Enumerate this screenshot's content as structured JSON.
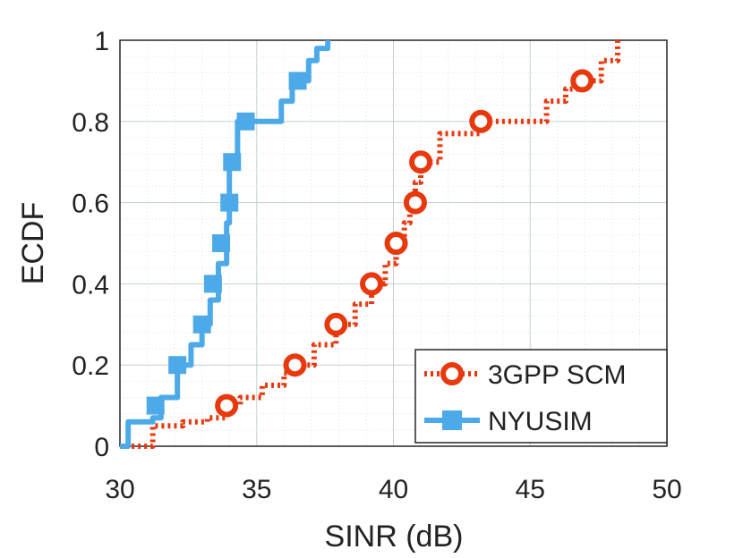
{
  "chart_data": {
    "type": "line",
    "title": "",
    "xlabel": "SINR (dB)",
    "ylabel": "ECDF",
    "xlim": [
      30,
      50
    ],
    "ylim": [
      0,
      1
    ],
    "xticks": [
      "30",
      "35",
      "40",
      "45",
      "50"
    ],
    "yticks": [
      "0",
      "0.2",
      "0.4",
      "0.6",
      "0.8",
      "1"
    ],
    "grid": true,
    "legend_position": "bottom-right",
    "series": [
      {
        "name": "3GPP SCM",
        "color": "#e8380d",
        "line_style": "dotted",
        "marker": "circle",
        "x": [
          30.2,
          31.2,
          32.3,
          33.2,
          33.9,
          34.4,
          35.2,
          36.0,
          36.4,
          37.1,
          37.9,
          38.6,
          39.2,
          39.7,
          40.1,
          40.4,
          40.6,
          40.8,
          41.0,
          41.7,
          42.5,
          43.2,
          44.0,
          45.0,
          45.6,
          46.3,
          46.9,
          47.6,
          48.2
        ],
        "y": [
          0.0,
          0.05,
          0.06,
          0.07,
          0.1,
          0.12,
          0.15,
          0.18,
          0.2,
          0.25,
          0.3,
          0.35,
          0.4,
          0.45,
          0.5,
          0.55,
          0.6,
          0.65,
          0.7,
          0.77,
          0.77,
          0.8,
          0.8,
          0.8,
          0.85,
          0.88,
          0.9,
          0.95,
          1.0
        ],
        "marker_x": [
          33.9,
          36.4,
          37.9,
          39.2,
          40.1,
          40.8,
          41.0,
          43.2,
          46.9
        ],
        "marker_y": [
          0.1,
          0.2,
          0.3,
          0.4,
          0.5,
          0.6,
          0.7,
          0.8,
          0.9
        ]
      },
      {
        "name": "NYUSIM",
        "color": "#4daae8",
        "line_style": "solid",
        "marker": "square",
        "x": [
          30.0,
          30.3,
          31.2,
          31.5,
          32.1,
          32.6,
          33.0,
          33.3,
          33.6,
          33.9,
          34.0,
          34.0,
          34.3,
          34.7,
          35.5,
          35.9,
          36.3,
          36.9,
          37.2,
          37.6
        ],
        "y": [
          0.0,
          0.06,
          0.07,
          0.12,
          0.2,
          0.25,
          0.3,
          0.36,
          0.45,
          0.55,
          0.6,
          0.7,
          0.8,
          0.8,
          0.8,
          0.85,
          0.9,
          0.95,
          0.98,
          1.0
        ],
        "marker_x": [
          31.3,
          32.1,
          33.0,
          33.4,
          33.7,
          34.0,
          34.1,
          34.6,
          36.5
        ],
        "marker_y": [
          0.1,
          0.2,
          0.3,
          0.4,
          0.5,
          0.6,
          0.7,
          0.8,
          0.9
        ]
      }
    ],
    "legend": {
      "entries": [
        "3GPP SCM",
        "NYUSIM"
      ]
    }
  }
}
